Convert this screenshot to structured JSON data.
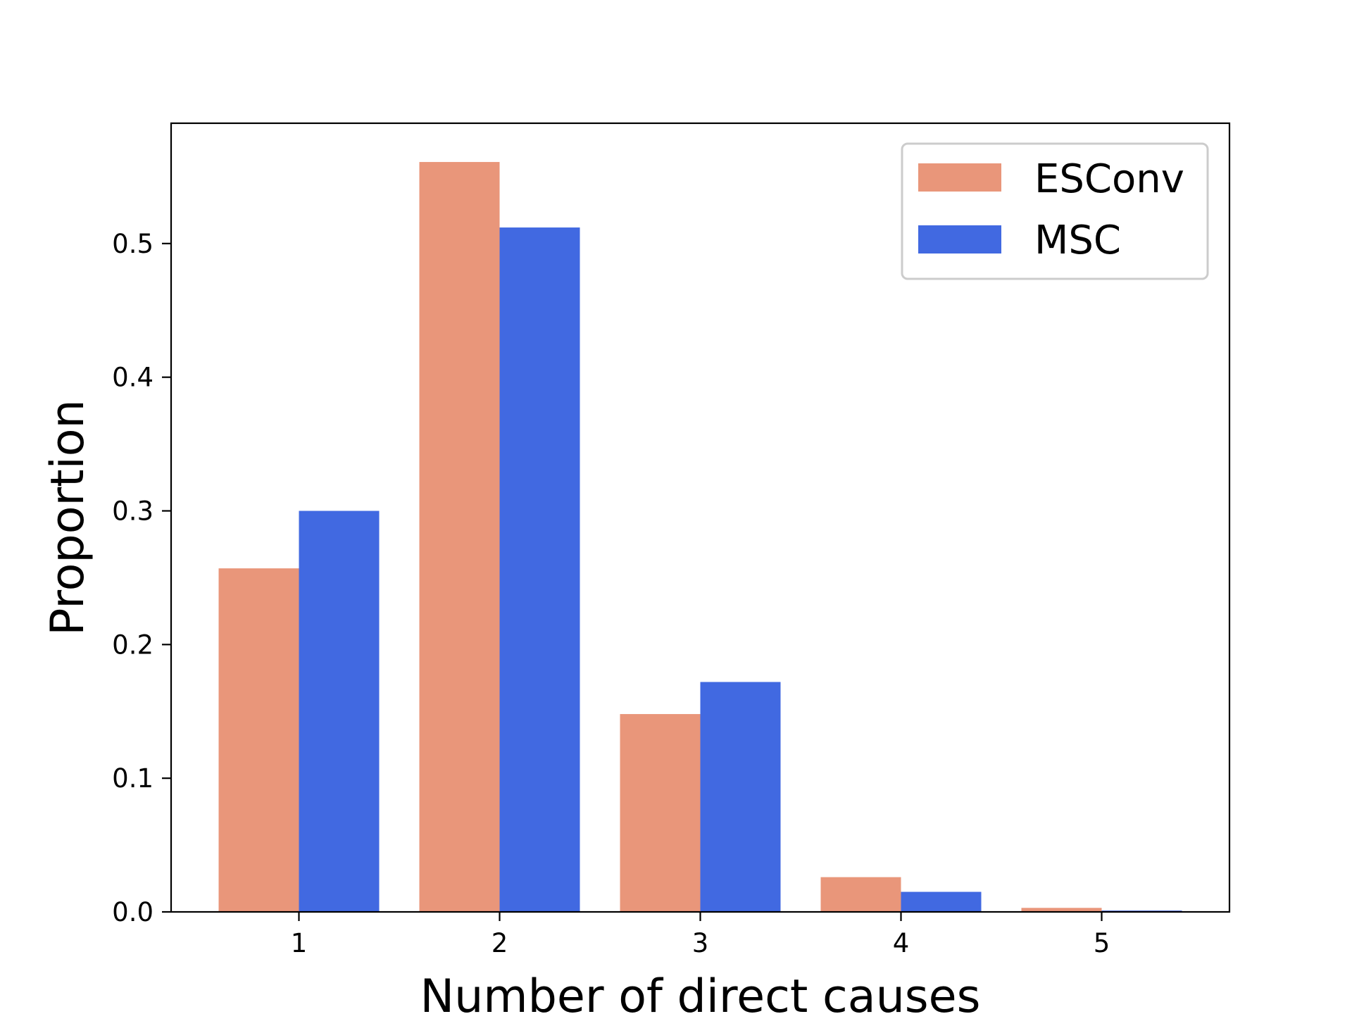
{
  "chart_data": {
    "type": "bar",
    "categories": [
      "1",
      "2",
      "3",
      "4",
      "5"
    ],
    "series": [
      {
        "name": "ESConv",
        "color": "#E9967A",
        "values": [
          0.257,
          0.561,
          0.148,
          0.026,
          0.003
        ]
      },
      {
        "name": "MSC",
        "color": "#4169E1",
        "values": [
          0.3,
          0.512,
          0.172,
          0.015,
          0.001
        ]
      }
    ],
    "title": "",
    "xlabel": "Number of direct causes",
    "ylabel": "Proportion",
    "ylim": [
      0,
      0.59
    ],
    "yticks": [
      0.0,
      0.1,
      0.2,
      0.3,
      0.4,
      0.5
    ],
    "ytick_labels": [
      "0.0",
      "0.1",
      "0.2",
      "0.3",
      "0.4",
      "0.5"
    ],
    "grid": false,
    "legend_position": "top-right"
  }
}
